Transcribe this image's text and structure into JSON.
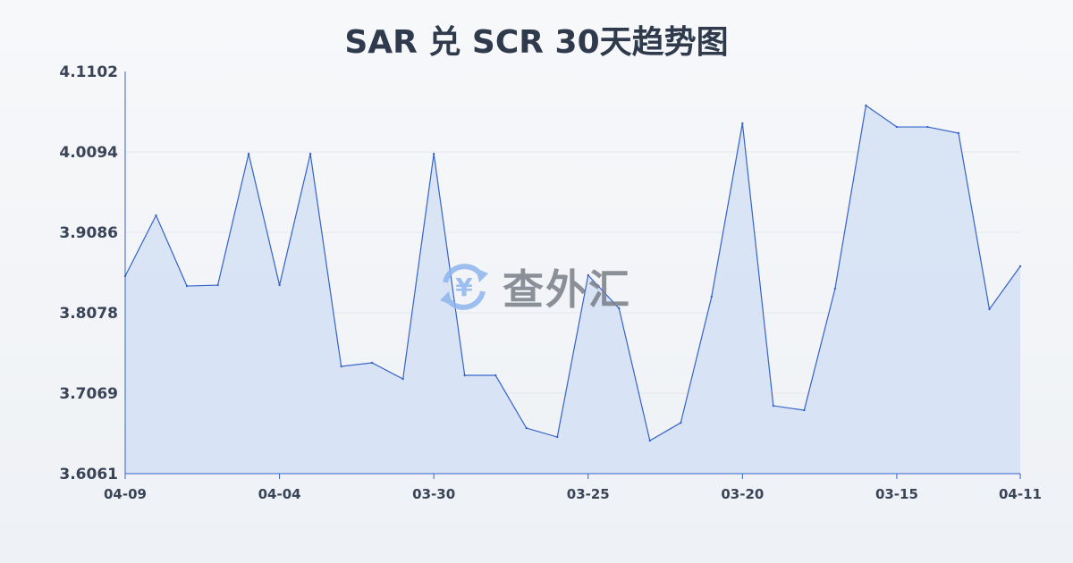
{
  "chart_data": {
    "type": "area",
    "title": "SAR 兑 SCR 30天趋势图",
    "xlabel": "",
    "ylabel": "",
    "ylim": [
      3.6061,
      4.1102
    ],
    "y_ticks": [
      "4.1102",
      "4.0094",
      "3.9086",
      "3.8078",
      "3.7069",
      "3.6061"
    ],
    "x_ticks": [
      {
        "index": 0,
        "label": "04-09"
      },
      {
        "index": 5,
        "label": "04-04"
      },
      {
        "index": 10,
        "label": "03-30"
      },
      {
        "index": 15,
        "label": "03-25"
      },
      {
        "index": 20,
        "label": "03-20"
      },
      {
        "index": 25,
        "label": "03-15"
      },
      {
        "index": 29,
        "label": "04-11"
      }
    ],
    "grid": true,
    "values": [
      3.8537,
      3.9298,
      3.8413,
      3.8424,
      4.0071,
      3.8424,
      4.0071,
      3.7405,
      3.745,
      3.7248,
      4.0071,
      3.7293,
      3.7293,
      3.6632,
      3.652,
      3.8548,
      3.8133,
      3.6475,
      3.6699,
      3.8279,
      4.0452,
      3.6912,
      3.6856,
      3.838,
      4.0676,
      4.0407,
      4.0407,
      4.0329,
      3.8122,
      3.866
    ],
    "colors": {
      "line": "#3563c9",
      "fill": "#d4e0f5",
      "grid": "#e3e6eb"
    }
  },
  "watermark": {
    "text": "查外汇",
    "icon": "yen-exchange-icon"
  }
}
